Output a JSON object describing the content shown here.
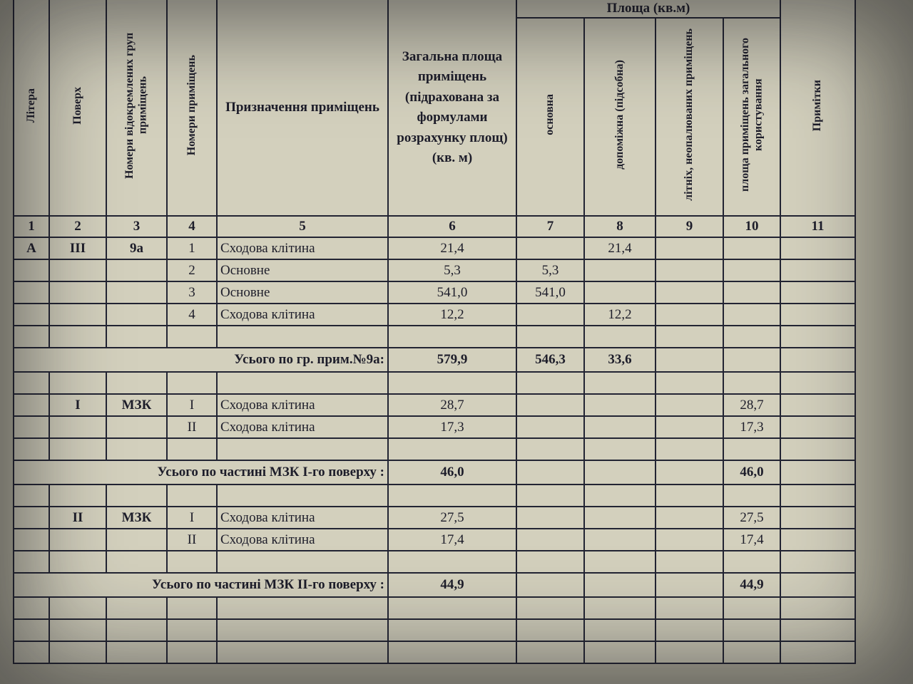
{
  "headers": {
    "litera": "Літера",
    "poverkh": "Поверх",
    "groups": "Номери відокремлених груп приміщень",
    "rooms": "Номери приміщень",
    "purpose": "Призначення приміщень",
    "total_area": "Загальна площа приміщень (підрахована за формулами розрахунку площ) (кв. м)",
    "area_group": "Площа (кв.м)",
    "main": "основна",
    "auxiliary": "допоміжна (підсобна)",
    "summer": "літніх, неопалюваних приміщень",
    "common": "площа приміщень загального користування",
    "notes": "Примітки"
  },
  "column_numbers": [
    "1",
    "2",
    "3",
    "4",
    "5",
    "6",
    "7",
    "8",
    "9",
    "10",
    "11"
  ],
  "rows": [
    {
      "type": "data",
      "cells": [
        "А",
        "III",
        "9а",
        "1",
        "Сходова клітина",
        "21,4",
        "",
        "21,4",
        "",
        "",
        ""
      ]
    },
    {
      "type": "data",
      "cells": [
        "",
        "",
        "",
        "2",
        "Основне",
        "5,3",
        "5,3",
        "",
        "",
        "",
        ""
      ]
    },
    {
      "type": "data",
      "cells": [
        "",
        "",
        "",
        "3",
        "Основне",
        "541,0",
        "541,0",
        "",
        "",
        "",
        ""
      ]
    },
    {
      "type": "data",
      "cells": [
        "",
        "",
        "",
        "4",
        "Сходова клітина",
        "12,2",
        "",
        "12,2",
        "",
        "",
        ""
      ]
    },
    {
      "type": "data",
      "cells": [
        "",
        "",
        "",
        "",
        "",
        "",
        "",
        "",
        "",
        "",
        ""
      ]
    },
    {
      "type": "total",
      "label": "Усього по гр. прим.№9а:",
      "cells": [
        "579,9",
        "546,3",
        "33,6",
        "",
        "",
        ""
      ]
    },
    {
      "type": "data",
      "cells": [
        "",
        "",
        "",
        "",
        "",
        "",
        "",
        "",
        "",
        "",
        ""
      ]
    },
    {
      "type": "data",
      "cells": [
        "",
        "I",
        "МЗК",
        "I",
        "Сходова клітина",
        "28,7",
        "",
        "",
        "",
        "28,7",
        ""
      ]
    },
    {
      "type": "data",
      "cells": [
        "",
        "",
        "",
        "II",
        "Сходова клітина",
        "17,3",
        "",
        "",
        "",
        "17,3",
        ""
      ]
    },
    {
      "type": "data",
      "cells": [
        "",
        "",
        "",
        "",
        "",
        "",
        "",
        "",
        "",
        "",
        ""
      ]
    },
    {
      "type": "total",
      "label": "Усього по частині МЗК I-го поверху :",
      "cells": [
        "46,0",
        "",
        "",
        "",
        "46,0",
        ""
      ]
    },
    {
      "type": "data",
      "cells": [
        "",
        "",
        "",
        "",
        "",
        "",
        "",
        "",
        "",
        "",
        ""
      ]
    },
    {
      "type": "data",
      "cells": [
        "",
        "II",
        "МЗК",
        "I",
        "Сходова клітина",
        "27,5",
        "",
        "",
        "",
        "27,5",
        ""
      ]
    },
    {
      "type": "data",
      "cells": [
        "",
        "",
        "",
        "II",
        "Сходова клітина",
        "17,4",
        "",
        "",
        "",
        "17,4",
        ""
      ]
    },
    {
      "type": "data",
      "cells": [
        "",
        "",
        "",
        "",
        "",
        "",
        "",
        "",
        "",
        "",
        ""
      ]
    },
    {
      "type": "total",
      "label": "Усього по частині МЗК II-го поверху :",
      "cells": [
        "44,9",
        "",
        "",
        "",
        "44,9",
        ""
      ]
    },
    {
      "type": "data",
      "cells": [
        "",
        "",
        "",
        "",
        "",
        "",
        "",
        "",
        "",
        "",
        ""
      ]
    },
    {
      "type": "data",
      "cells": [
        "",
        "",
        "",
        "",
        "",
        "",
        "",
        "",
        "",
        "",
        ""
      ]
    },
    {
      "type": "data",
      "cells": [
        "",
        "",
        "",
        "",
        "",
        "",
        "",
        "",
        "",
        "",
        ""
      ]
    }
  ]
}
